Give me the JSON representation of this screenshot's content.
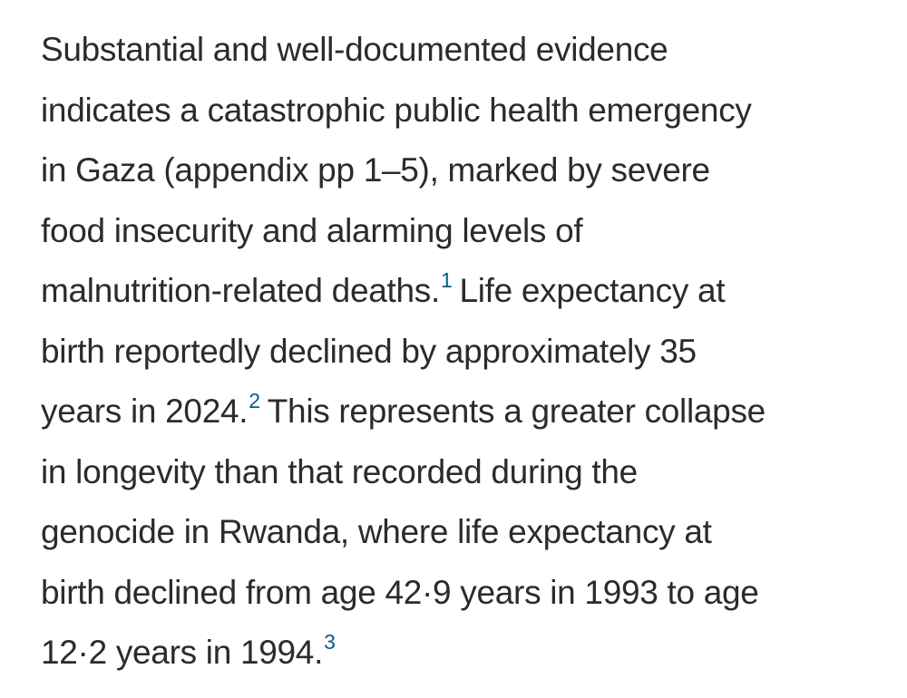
{
  "paragraph": {
    "lines": [
      "Substantial and well-documented evidence",
      "indicates a catastrophic public health emergency",
      "in Gaza (appendix pp 1–5), marked by severe",
      "food insecurity and alarming levels of",
      "malnutrition-related deaths.",
      "Life expectancy at",
      "birth reportedly declined by approximately 35",
      "years in 2024.",
      "This represents a greater collapse",
      "in longevity than that recorded during the",
      "genocide in Rwanda, where life expectancy at",
      "birth declined from age 42·9 years in 1993 to age",
      "12·2 years in 1994."
    ],
    "refs": [
      "1",
      "2",
      "3"
    ]
  },
  "colors": {
    "text": "#2b2b2b",
    "reference_link": "#0a5a8a",
    "background": "#ffffff"
  }
}
